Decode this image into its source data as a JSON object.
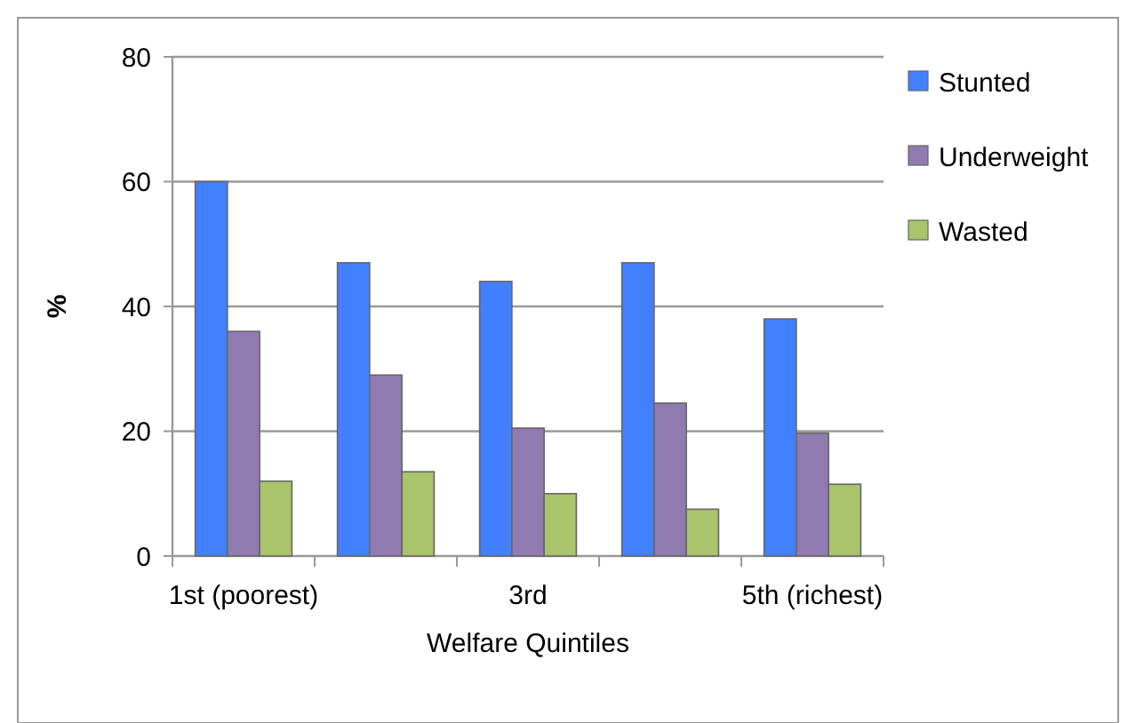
{
  "chart_data": {
    "type": "bar",
    "xlabel": "Welfare Quintiles",
    "ylabel": "%",
    "categories": [
      "1st (poorest)",
      null,
      "3rd",
      null,
      "5th (richest)"
    ],
    "series": [
      {
        "name": "Stunted",
        "color": "#4080ff",
        "values": [
          60,
          47,
          44,
          47,
          38
        ]
      },
      {
        "name": "Underweight",
        "color": "#8f7bb0",
        "values": [
          36,
          29,
          20.5,
          24.5,
          19.7
        ]
      },
      {
        "name": "Wasted",
        "color": "#a9c46a",
        "values": [
          12,
          13.5,
          10,
          7.5,
          11.5
        ]
      }
    ],
    "ylim": [
      0,
      80
    ],
    "yticks": [
      0,
      20,
      40,
      60,
      80
    ],
    "grid": "y",
    "legend": "top right"
  }
}
